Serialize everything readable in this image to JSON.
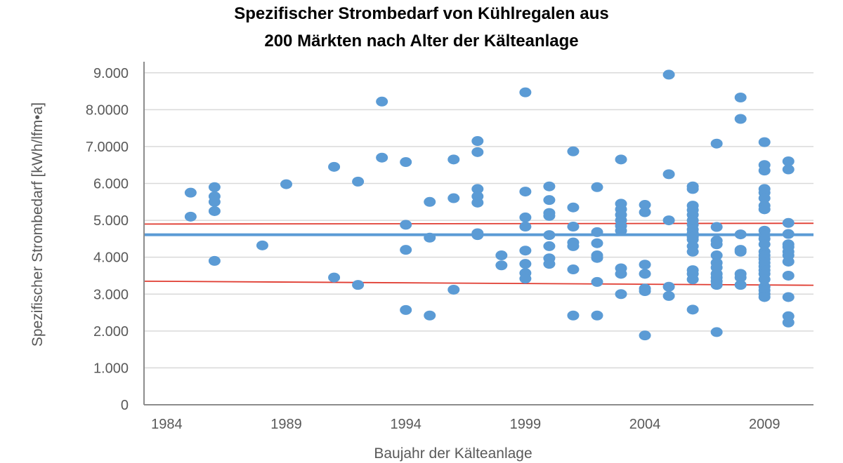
{
  "chart_data": {
    "type": "scatter",
    "title": "Spezifischer Strombedarf von Kühlregalen aus",
    "subtitle": "200 Märkten nach Alter der Kälteanlage",
    "xlabel": "Baujahr der Kälteanlage",
    "ylabel": "Spezifischer Strombedarf [kWh/lfm•a]",
    "xlim": [
      1983.05,
      2011.05
    ],
    "ylim": [
      0,
      9.3
    ],
    "x_ticks": [
      {
        "value": 1984,
        "label": "1984"
      },
      {
        "value": 1989,
        "label": "1989"
      },
      {
        "value": 1994,
        "label": "1994"
      },
      {
        "value": 1999,
        "label": "1999"
      },
      {
        "value": 2004,
        "label": "2004"
      },
      {
        "value": 2009,
        "label": "2009"
      }
    ],
    "y_ticks": [
      {
        "value": 0,
        "label": "0"
      },
      {
        "value": 1,
        "label": "1.000"
      },
      {
        "value": 2,
        "label": "2.000"
      },
      {
        "value": 3,
        "label": "3.000"
      },
      {
        "value": 4,
        "label": "4.000"
      },
      {
        "value": 5,
        "label": "5.000"
      },
      {
        "value": 6,
        "label": "6.000"
      },
      {
        "value": 7,
        "label": "7.0000"
      },
      {
        "value": 8,
        "label": "8.0000"
      },
      {
        "value": 9,
        "label": "9.000"
      }
    ],
    "grid": "horizontal",
    "colors": {
      "points": "#5b9bd5",
      "mean_line": "#5b9bd5",
      "band_lines": "#e03c31",
      "grid": "#d9d9d9",
      "axis": "#8c8c8c"
    },
    "reference_lines": [
      {
        "kind": "mean",
        "y": [
          4.61,
          4.61
        ]
      },
      {
        "kind": "upper",
        "y": [
          4.9,
          4.92
        ]
      },
      {
        "kind": "lower",
        "y": [
          3.35,
          3.24
        ]
      }
    ],
    "points": [
      [
        1985,
        5.75
      ],
      [
        1985,
        5.1
      ],
      [
        1986,
        5.9
      ],
      [
        1986,
        5.65
      ],
      [
        1986,
        5.5
      ],
      [
        1986,
        5.25
      ],
      [
        1986,
        3.9
      ],
      [
        1988,
        4.32
      ],
      [
        1989,
        5.98
      ],
      [
        1991,
        6.45
      ],
      [
        1991,
        3.45
      ],
      [
        1992,
        6.05
      ],
      [
        1992,
        3.25
      ],
      [
        1993,
        8.22
      ],
      [
        1993,
        6.7
      ],
      [
        1994,
        6.58
      ],
      [
        1994,
        4.88
      ],
      [
        1994,
        4.2
      ],
      [
        1994,
        2.57
      ],
      [
        1995,
        5.5
      ],
      [
        1995,
        4.53
      ],
      [
        1995,
        2.42
      ],
      [
        1996,
        6.65
      ],
      [
        1996,
        5.6
      ],
      [
        1996,
        3.12
      ],
      [
        1997,
        7.15
      ],
      [
        1997,
        6.85
      ],
      [
        1997,
        5.85
      ],
      [
        1997,
        5.65
      ],
      [
        1997,
        5.48
      ],
      [
        1997,
        4.65
      ],
      [
        1997,
        4.6
      ],
      [
        1998,
        4.05
      ],
      [
        1998,
        3.78
      ],
      [
        1999,
        8.47
      ],
      [
        1999,
        5.78
      ],
      [
        1999,
        5.08
      ],
      [
        1999,
        4.83
      ],
      [
        1999,
        4.18
      ],
      [
        1999,
        3.82
      ],
      [
        1999,
        3.57
      ],
      [
        1999,
        3.42
      ],
      [
        2000,
        5.92
      ],
      [
        2000,
        5.55
      ],
      [
        2000,
        5.2
      ],
      [
        2000,
        5.12
      ],
      [
        2000,
        4.6
      ],
      [
        2000,
        4.3
      ],
      [
        2000,
        3.97
      ],
      [
        2000,
        3.82
      ],
      [
        2001,
        6.87
      ],
      [
        2001,
        5.35
      ],
      [
        2001,
        4.83
      ],
      [
        2001,
        4.4
      ],
      [
        2001,
        4.3
      ],
      [
        2001,
        3.67
      ],
      [
        2001,
        2.42
      ],
      [
        2002,
        5.9
      ],
      [
        2002,
        4.68
      ],
      [
        2002,
        4.38
      ],
      [
        2002,
        4.05
      ],
      [
        2002,
        3.98
      ],
      [
        2002,
        3.33
      ],
      [
        2002,
        2.42
      ],
      [
        2003,
        6.65
      ],
      [
        2003,
        5.45
      ],
      [
        2003,
        5.3
      ],
      [
        2003,
        5.15
      ],
      [
        2003,
        5.0
      ],
      [
        2003,
        4.85
      ],
      [
        2003,
        4.72
      ],
      [
        2003,
        3.7
      ],
      [
        2003,
        3.55
      ],
      [
        2003,
        3.0
      ],
      [
        2004,
        5.42
      ],
      [
        2004,
        5.22
      ],
      [
        2004,
        3.8
      ],
      [
        2004,
        3.55
      ],
      [
        2004,
        3.15
      ],
      [
        2004,
        3.08
      ],
      [
        2004,
        1.88
      ],
      [
        2005,
        8.95
      ],
      [
        2005,
        6.25
      ],
      [
        2005,
        5.0
      ],
      [
        2005,
        3.2
      ],
      [
        2005,
        2.95
      ],
      [
        2006,
        5.92
      ],
      [
        2006,
        5.85
      ],
      [
        2006,
        5.4
      ],
      [
        2006,
        5.28
      ],
      [
        2006,
        5.15
      ],
      [
        2006,
        5.0
      ],
      [
        2006,
        4.88
      ],
      [
        2006,
        4.75
      ],
      [
        2006,
        4.65
      ],
      [
        2006,
        4.55
      ],
      [
        2006,
        4.48
      ],
      [
        2006,
        4.3
      ],
      [
        2006,
        4.15
      ],
      [
        2006,
        3.65
      ],
      [
        2006,
        3.55
      ],
      [
        2006,
        3.4
      ],
      [
        2006,
        2.58
      ],
      [
        2007,
        7.08
      ],
      [
        2007,
        4.82
      ],
      [
        2007,
        4.45
      ],
      [
        2007,
        4.35
      ],
      [
        2007,
        4.05
      ],
      [
        2007,
        3.85
      ],
      [
        2007,
        3.72
      ],
      [
        2007,
        3.55
      ],
      [
        2007,
        3.45
      ],
      [
        2007,
        3.35
      ],
      [
        2007,
        3.25
      ],
      [
        2007,
        1.97
      ],
      [
        2008,
        8.33
      ],
      [
        2008,
        7.75
      ],
      [
        2008,
        4.62
      ],
      [
        2008,
        4.2
      ],
      [
        2008,
        4.15
      ],
      [
        2008,
        3.55
      ],
      [
        2008,
        3.45
      ],
      [
        2008,
        3.25
      ],
      [
        2009,
        7.12
      ],
      [
        2009,
        6.5
      ],
      [
        2009,
        6.35
      ],
      [
        2009,
        5.85
      ],
      [
        2009,
        5.75
      ],
      [
        2009,
        5.6
      ],
      [
        2009,
        5.4
      ],
      [
        2009,
        5.3
      ],
      [
        2009,
        4.72
      ],
      [
        2009,
        4.6
      ],
      [
        2009,
        4.5
      ],
      [
        2009,
        4.35
      ],
      [
        2009,
        4.15
      ],
      [
        2009,
        4.05
      ],
      [
        2009,
        3.95
      ],
      [
        2009,
        3.85
      ],
      [
        2009,
        3.75
      ],
      [
        2009,
        3.65
      ],
      [
        2009,
        3.55
      ],
      [
        2009,
        3.4
      ],
      [
        2009,
        3.2
      ],
      [
        2009,
        3.1
      ],
      [
        2009,
        3.0
      ],
      [
        2009,
        2.92
      ],
      [
        2010,
        6.6
      ],
      [
        2010,
        6.38
      ],
      [
        2010,
        4.93
      ],
      [
        2010,
        4.63
      ],
      [
        2010,
        4.35
      ],
      [
        2010,
        4.28
      ],
      [
        2010,
        4.15
      ],
      [
        2010,
        4.05
      ],
      [
        2010,
        3.88
      ],
      [
        2010,
        3.5
      ],
      [
        2010,
        2.92
      ],
      [
        2010,
        2.4
      ],
      [
        2010,
        2.23
      ]
    ]
  }
}
